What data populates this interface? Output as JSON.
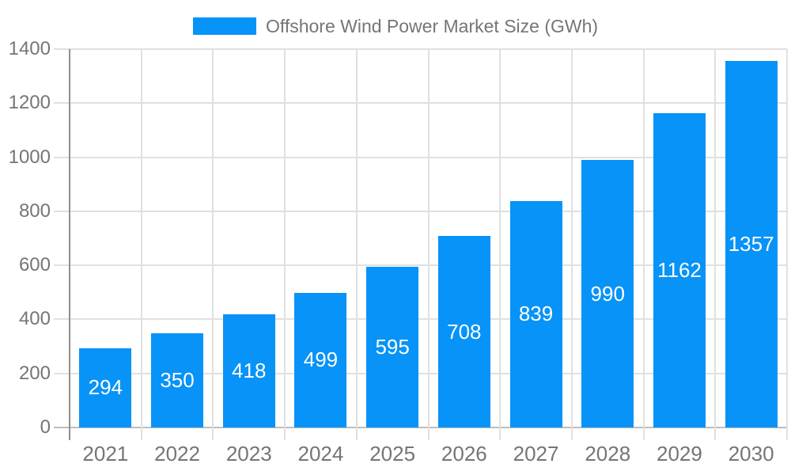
{
  "legend": {
    "label": "Offshore Wind Power Market Size (GWh)"
  },
  "chart_data": {
    "type": "bar",
    "title": "Offshore Wind Power Market Size (GWh)",
    "categories": [
      "2021",
      "2022",
      "2023",
      "2024",
      "2025",
      "2026",
      "2027",
      "2028",
      "2029",
      "2030"
    ],
    "values": [
      294,
      350,
      418,
      499,
      595,
      708,
      839,
      990,
      1162,
      1357
    ],
    "xlabel": "",
    "ylabel": "",
    "ylim": [
      0,
      1400
    ],
    "yticks": [
      0,
      200,
      400,
      600,
      800,
      1000,
      1200,
      1400
    ],
    "grid": true,
    "legend_position": "top",
    "bar_color": "#0793f7",
    "value_label_color": "#ffffff",
    "axis_text_color": "#757575",
    "gridline_color": "#e0e0e0",
    "zero_line_color": "#bdbdbd",
    "axis_line_color": "#909090"
  }
}
